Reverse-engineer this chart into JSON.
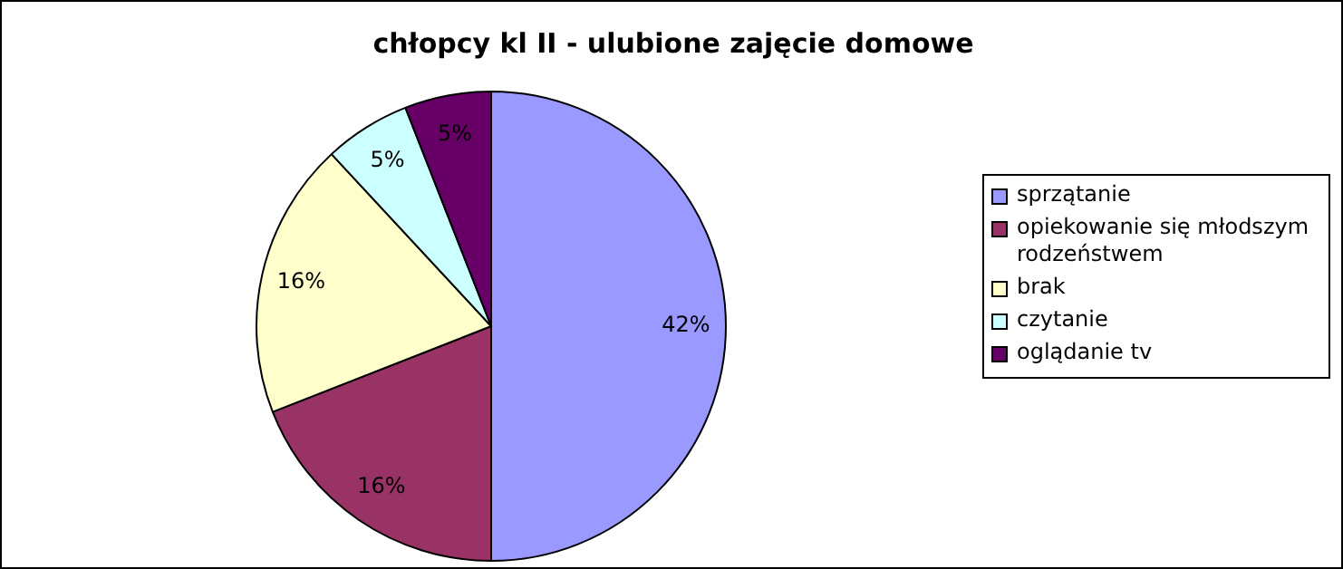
{
  "chart_data": {
    "type": "pie",
    "title": "chłopcy kl II - ulubione zajęcie domowe",
    "categories": [
      "sprzątanie",
      "opiekowanie się młodszym rodzeństwem",
      "brak",
      "czytanie",
      "oglądanie tv"
    ],
    "values": [
      42,
      16,
      16,
      5,
      5
    ],
    "colors": [
      "#9999ff",
      "#993366",
      "#ffffcc",
      "#ccffff",
      "#660066"
    ],
    "value_labels": [
      "42%",
      "16%",
      "16%",
      "5%",
      "5%"
    ],
    "legend": "right"
  }
}
